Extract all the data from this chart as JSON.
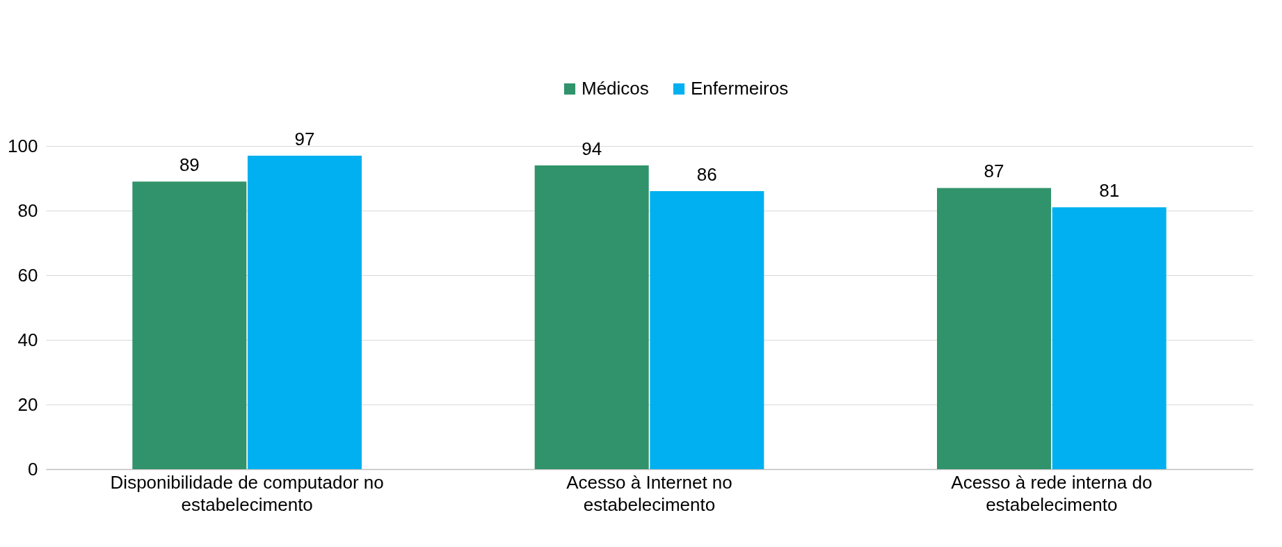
{
  "chart_data": {
    "type": "bar",
    "categories": [
      "Disponibilidade de computador no estabelecimento",
      "Acesso à Internet no estabelecimento",
      "Acesso à rede interna do estabelecimento"
    ],
    "series": [
      {
        "name": "Médicos",
        "color": "#31936b",
        "values": [
          89,
          94,
          87
        ]
      },
      {
        "name": "Enfermeiros",
        "color": "#00b0f0",
        "values": [
          97,
          86,
          81
        ]
      }
    ],
    "ylim": [
      0,
      100
    ],
    "yticks": [
      0,
      20,
      40,
      60,
      80,
      100
    ],
    "grid": "y",
    "legend": "top",
    "data_labels": true
  }
}
